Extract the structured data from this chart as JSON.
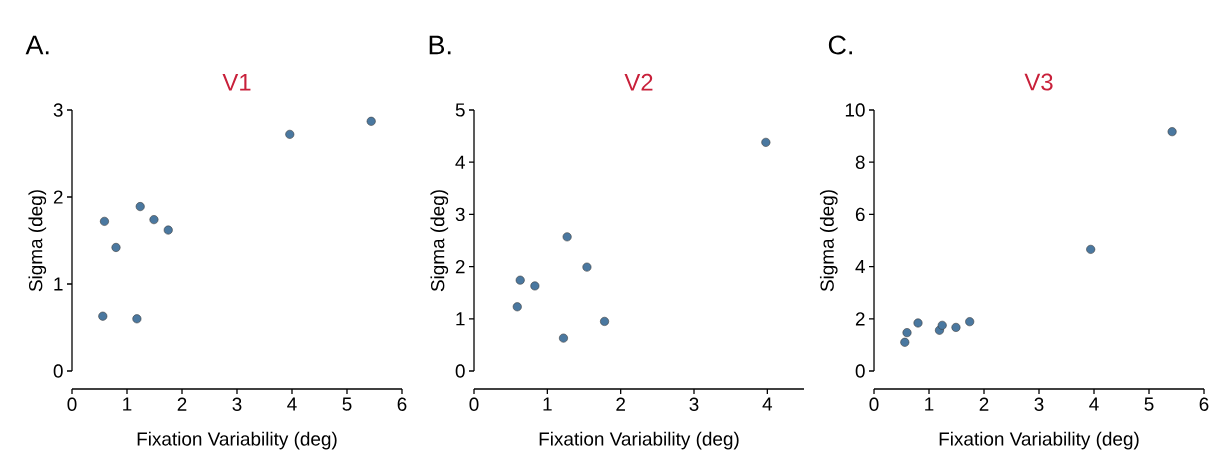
{
  "chart_data": [
    {
      "type": "scatter",
      "title": "V1",
      "annotations": [
        "A."
      ],
      "xlabel": "Fixation Variability (deg)",
      "ylabel": "Sigma (deg)",
      "xlim": [
        0,
        6
      ],
      "ylim": [
        0,
        3
      ],
      "xticks": [
        0,
        1,
        2,
        3,
        4,
        5,
        6
      ],
      "yticks": [
        0,
        1,
        2,
        3
      ],
      "series": [
        {
          "color": "#4a78a0",
          "x": [
            0.56,
            0.59,
            0.8,
            1.24,
            1.49,
            1.75,
            1.18,
            3.96,
            5.44
          ],
          "values": [
            0.63,
            1.72,
            1.42,
            1.89,
            1.74,
            1.62,
            0.6,
            2.72,
            2.87
          ]
        }
      ]
    },
    {
      "type": "scatter",
      "title": "V2",
      "annotations": [
        "B."
      ],
      "xlabel": "Fixation Variability (deg)",
      "ylabel": "Sigma (deg)",
      "xlim": [
        0,
        4.5
      ],
      "ylim": [
        0,
        5
      ],
      "xticks": [
        0,
        1,
        2,
        3,
        4
      ],
      "yticks": [
        0,
        1,
        2,
        3,
        4,
        5
      ],
      "series": [
        {
          "color": "#4a78a0",
          "x": [
            0.59,
            0.63,
            0.83,
            1.27,
            1.54,
            1.78,
            1.22,
            3.98
          ],
          "values": [
            1.23,
            1.74,
            1.63,
            2.57,
            1.99,
            0.95,
            0.63,
            4.38
          ]
        }
      ]
    },
    {
      "type": "scatter",
      "title": "V3",
      "annotations": [
        "C."
      ],
      "xlabel": "Fixation Variability (deg)",
      "ylabel": "Sigma (deg)",
      "xlim": [
        0,
        6
      ],
      "ylim": [
        0,
        10
      ],
      "xticks": [
        0,
        1,
        2,
        3,
        4,
        5,
        6
      ],
      "yticks": [
        0,
        2,
        4,
        6,
        8,
        10
      ],
      "series": [
        {
          "color": "#4a78a0",
          "x": [
            0.56,
            0.6,
            0.8,
            1.19,
            1.24,
            1.49,
            1.74,
            3.94,
            5.42
          ],
          "values": [
            1.1,
            1.47,
            1.84,
            1.56,
            1.75,
            1.67,
            1.89,
            4.66,
            9.17
          ]
        }
      ]
    }
  ]
}
